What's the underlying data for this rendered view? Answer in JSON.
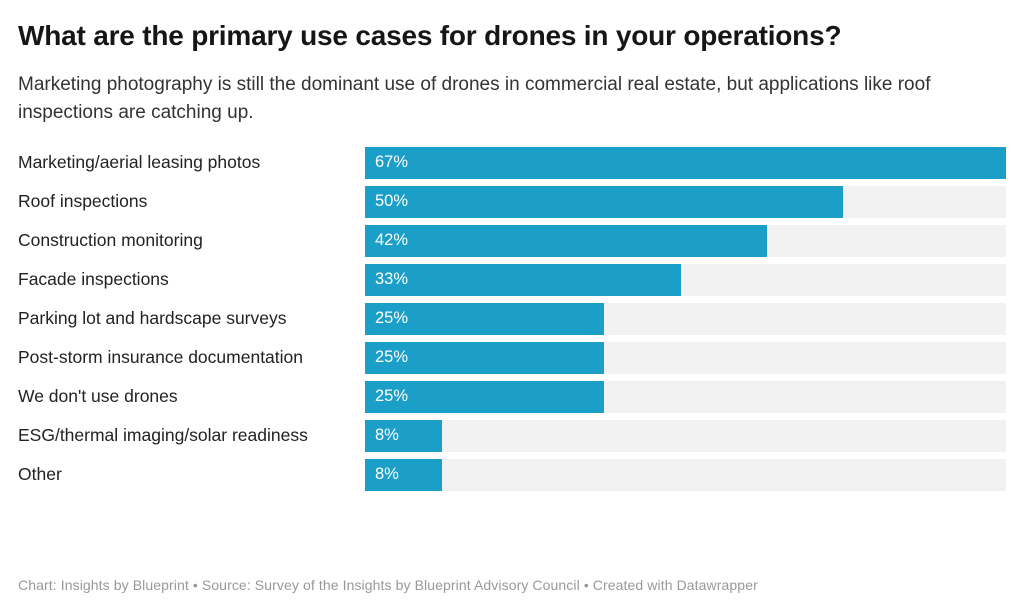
{
  "header": {
    "title": "What are the primary use cases for drones in your operations?",
    "subtitle": "Marketing photography is still the dominant use of drones in commercial real estate, but applications like roof inspections are catching up."
  },
  "chart_data": {
    "type": "bar",
    "orientation": "horizontal",
    "title": "What are the primary use cases for drones in your operations?",
    "subtitle": "Marketing photography is still the dominant use of drones in commercial real estate, but applications like roof inspections are catching up.",
    "categories": [
      "Marketing/aerial leasing photos",
      "Roof inspections",
      "Construction monitoring",
      "Facade inspections",
      "Parking lot and hardscape surveys",
      "Post-storm insurance documentation",
      "We don't use drones",
      "ESG/thermal imaging/solar readiness",
      "Other"
    ],
    "values": [
      67,
      50,
      42,
      33,
      25,
      25,
      25,
      8,
      8
    ],
    "value_suffix": "%",
    "value_label_position": "inside-left",
    "xlim": [
      0,
      67
    ],
    "grid": false,
    "legend": false,
    "bar_color": "#1B9FC9",
    "track_color": "#F2F2F2",
    "value_text_color": "#FFFFFF"
  },
  "footer": {
    "text": "Chart: Insights by Blueprint • Source: Survey of the Insights by Blueprint Advisory Council • Created with Datawrapper"
  }
}
